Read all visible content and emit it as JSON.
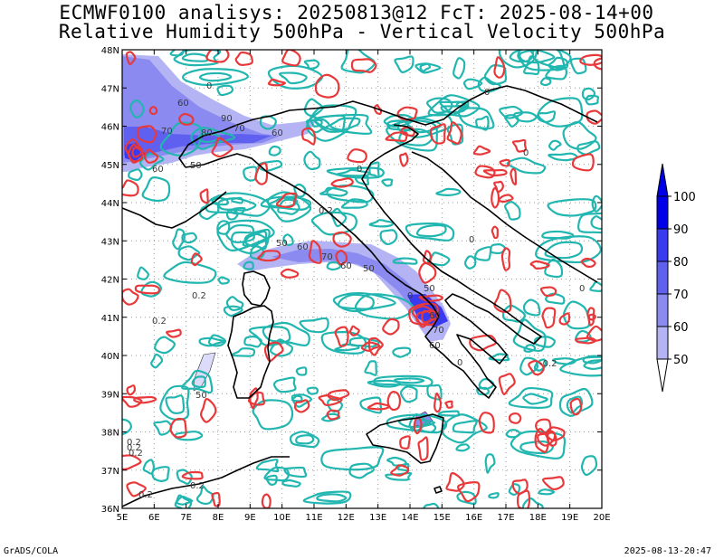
{
  "titles": {
    "line1": "ECMWF0100 analisys: 20250813@12 FcT: 2025-08-14+00",
    "line2": "Relative Humidity 500hPa - Vertical Velocity 500hPa"
  },
  "footer": {
    "left": "GrADS/COLA",
    "right": "2025-08-13-20:47"
  },
  "map": {
    "lon_range": [
      5,
      20
    ],
    "lat_range": [
      36,
      48
    ],
    "lon_labels": [
      "5E",
      "6E",
      "7E",
      "8E",
      "9E",
      "10E",
      "11E",
      "12E",
      "13E",
      "14E",
      "15E",
      "16E",
      "17E",
      "18E",
      "19E",
      "20E"
    ],
    "lat_labels": [
      "36N",
      "37N",
      "38N",
      "39N",
      "40N",
      "41N",
      "42N",
      "43N",
      "44N",
      "45N",
      "46N",
      "47N",
      "48N"
    ],
    "grid": "dotted",
    "colors": {
      "coast": "#000000",
      "vv_positive": "#e8383a",
      "vv_negative": "#22b6b0",
      "rh_contour": "#333333"
    }
  },
  "contour_labels": {
    "rh": [
      "60",
      "60",
      "70",
      "70",
      "60",
      "50",
      "80",
      "90",
      "50",
      "60",
      "70",
      "60",
      "50",
      "50",
      "60",
      "70",
      "60",
      "50"
    ],
    "vv": [
      "0",
      "0",
      "0",
      "0",
      "0",
      "0",
      "0",
      "0",
      "0.2",
      "0.2",
      "0.2",
      "0.2",
      "0.2",
      "0.2",
      "0.2",
      "-0.2",
      "0.2"
    ]
  },
  "legend": {
    "levels": [
      "100",
      "90",
      "80",
      "70",
      "60",
      "50"
    ],
    "colors": [
      "#0000e8",
      "#3a3af0",
      "#6060f0",
      "#8a8af0",
      "#b4b4f4",
      "#dcdcfa"
    ]
  }
}
